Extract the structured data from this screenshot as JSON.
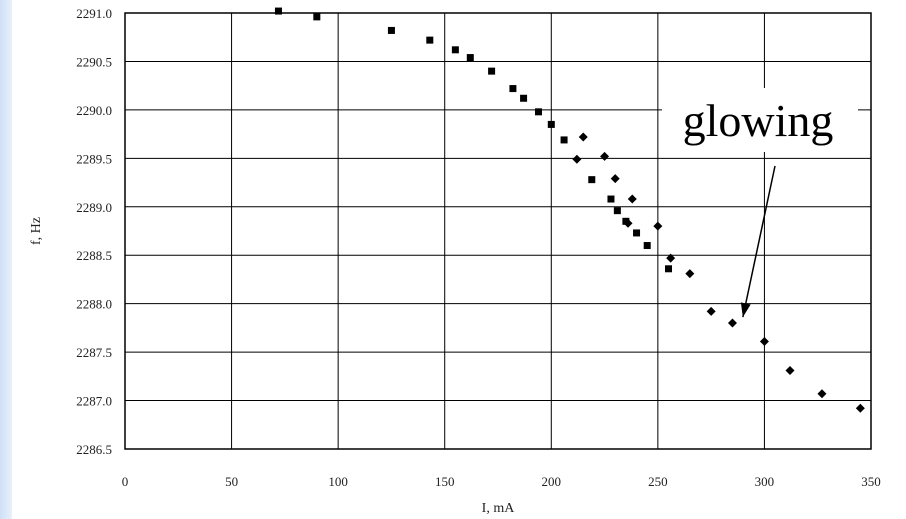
{
  "chart_data": {
    "type": "scatter",
    "title": "",
    "xlabel": "I, mA",
    "ylabel": "f, Hz",
    "xlim": [
      0,
      350
    ],
    "ylim": [
      2286.5,
      2291.0
    ],
    "x_ticks": [
      "0",
      "50",
      "100",
      "150",
      "200",
      "250",
      "300",
      "350"
    ],
    "y_ticks": [
      "2286.5",
      "2287.0",
      "2287.5",
      "2288.0",
      "2288.5",
      "2289.0",
      "2289.5",
      "2290.0",
      "2290.5",
      "2291.0"
    ],
    "grid": true,
    "annotation": {
      "text": "glowing",
      "points_to": {
        "x": 288,
        "y": 2287.82
      }
    },
    "series": [
      {
        "marker": "square",
        "color": "#000000",
        "points": [
          [
            72,
            2291.02
          ],
          [
            90,
            2290.96
          ],
          [
            125,
            2290.82
          ],
          [
            143,
            2290.72
          ],
          [
            155,
            2290.62
          ],
          [
            162,
            2290.54
          ],
          [
            172,
            2290.4
          ],
          [
            182,
            2290.22
          ],
          [
            187,
            2290.12
          ],
          [
            194,
            2289.98
          ],
          [
            200,
            2289.85
          ],
          [
            206,
            2289.69
          ],
          [
            219,
            2289.28
          ],
          [
            228,
            2289.08
          ],
          [
            231,
            2288.96
          ],
          [
            235,
            2288.85
          ],
          [
            240,
            2288.73
          ],
          [
            245,
            2288.6
          ],
          [
            255,
            2288.36
          ]
        ]
      },
      {
        "marker": "diamond",
        "color": "#000000",
        "points": [
          [
            212,
            2289.49
          ],
          [
            215,
            2289.72
          ],
          [
            225,
            2289.52
          ],
          [
            230,
            2289.29
          ],
          [
            236,
            2288.83
          ],
          [
            238,
            2289.08
          ],
          [
            250,
            2288.8
          ],
          [
            256,
            2288.47
          ],
          [
            265,
            2288.31
          ],
          [
            275,
            2287.92
          ],
          [
            285,
            2287.8
          ],
          [
            300,
            2287.61
          ],
          [
            312,
            2287.31
          ],
          [
            327,
            2287.07
          ],
          [
            345,
            2286.92
          ]
        ]
      }
    ]
  }
}
